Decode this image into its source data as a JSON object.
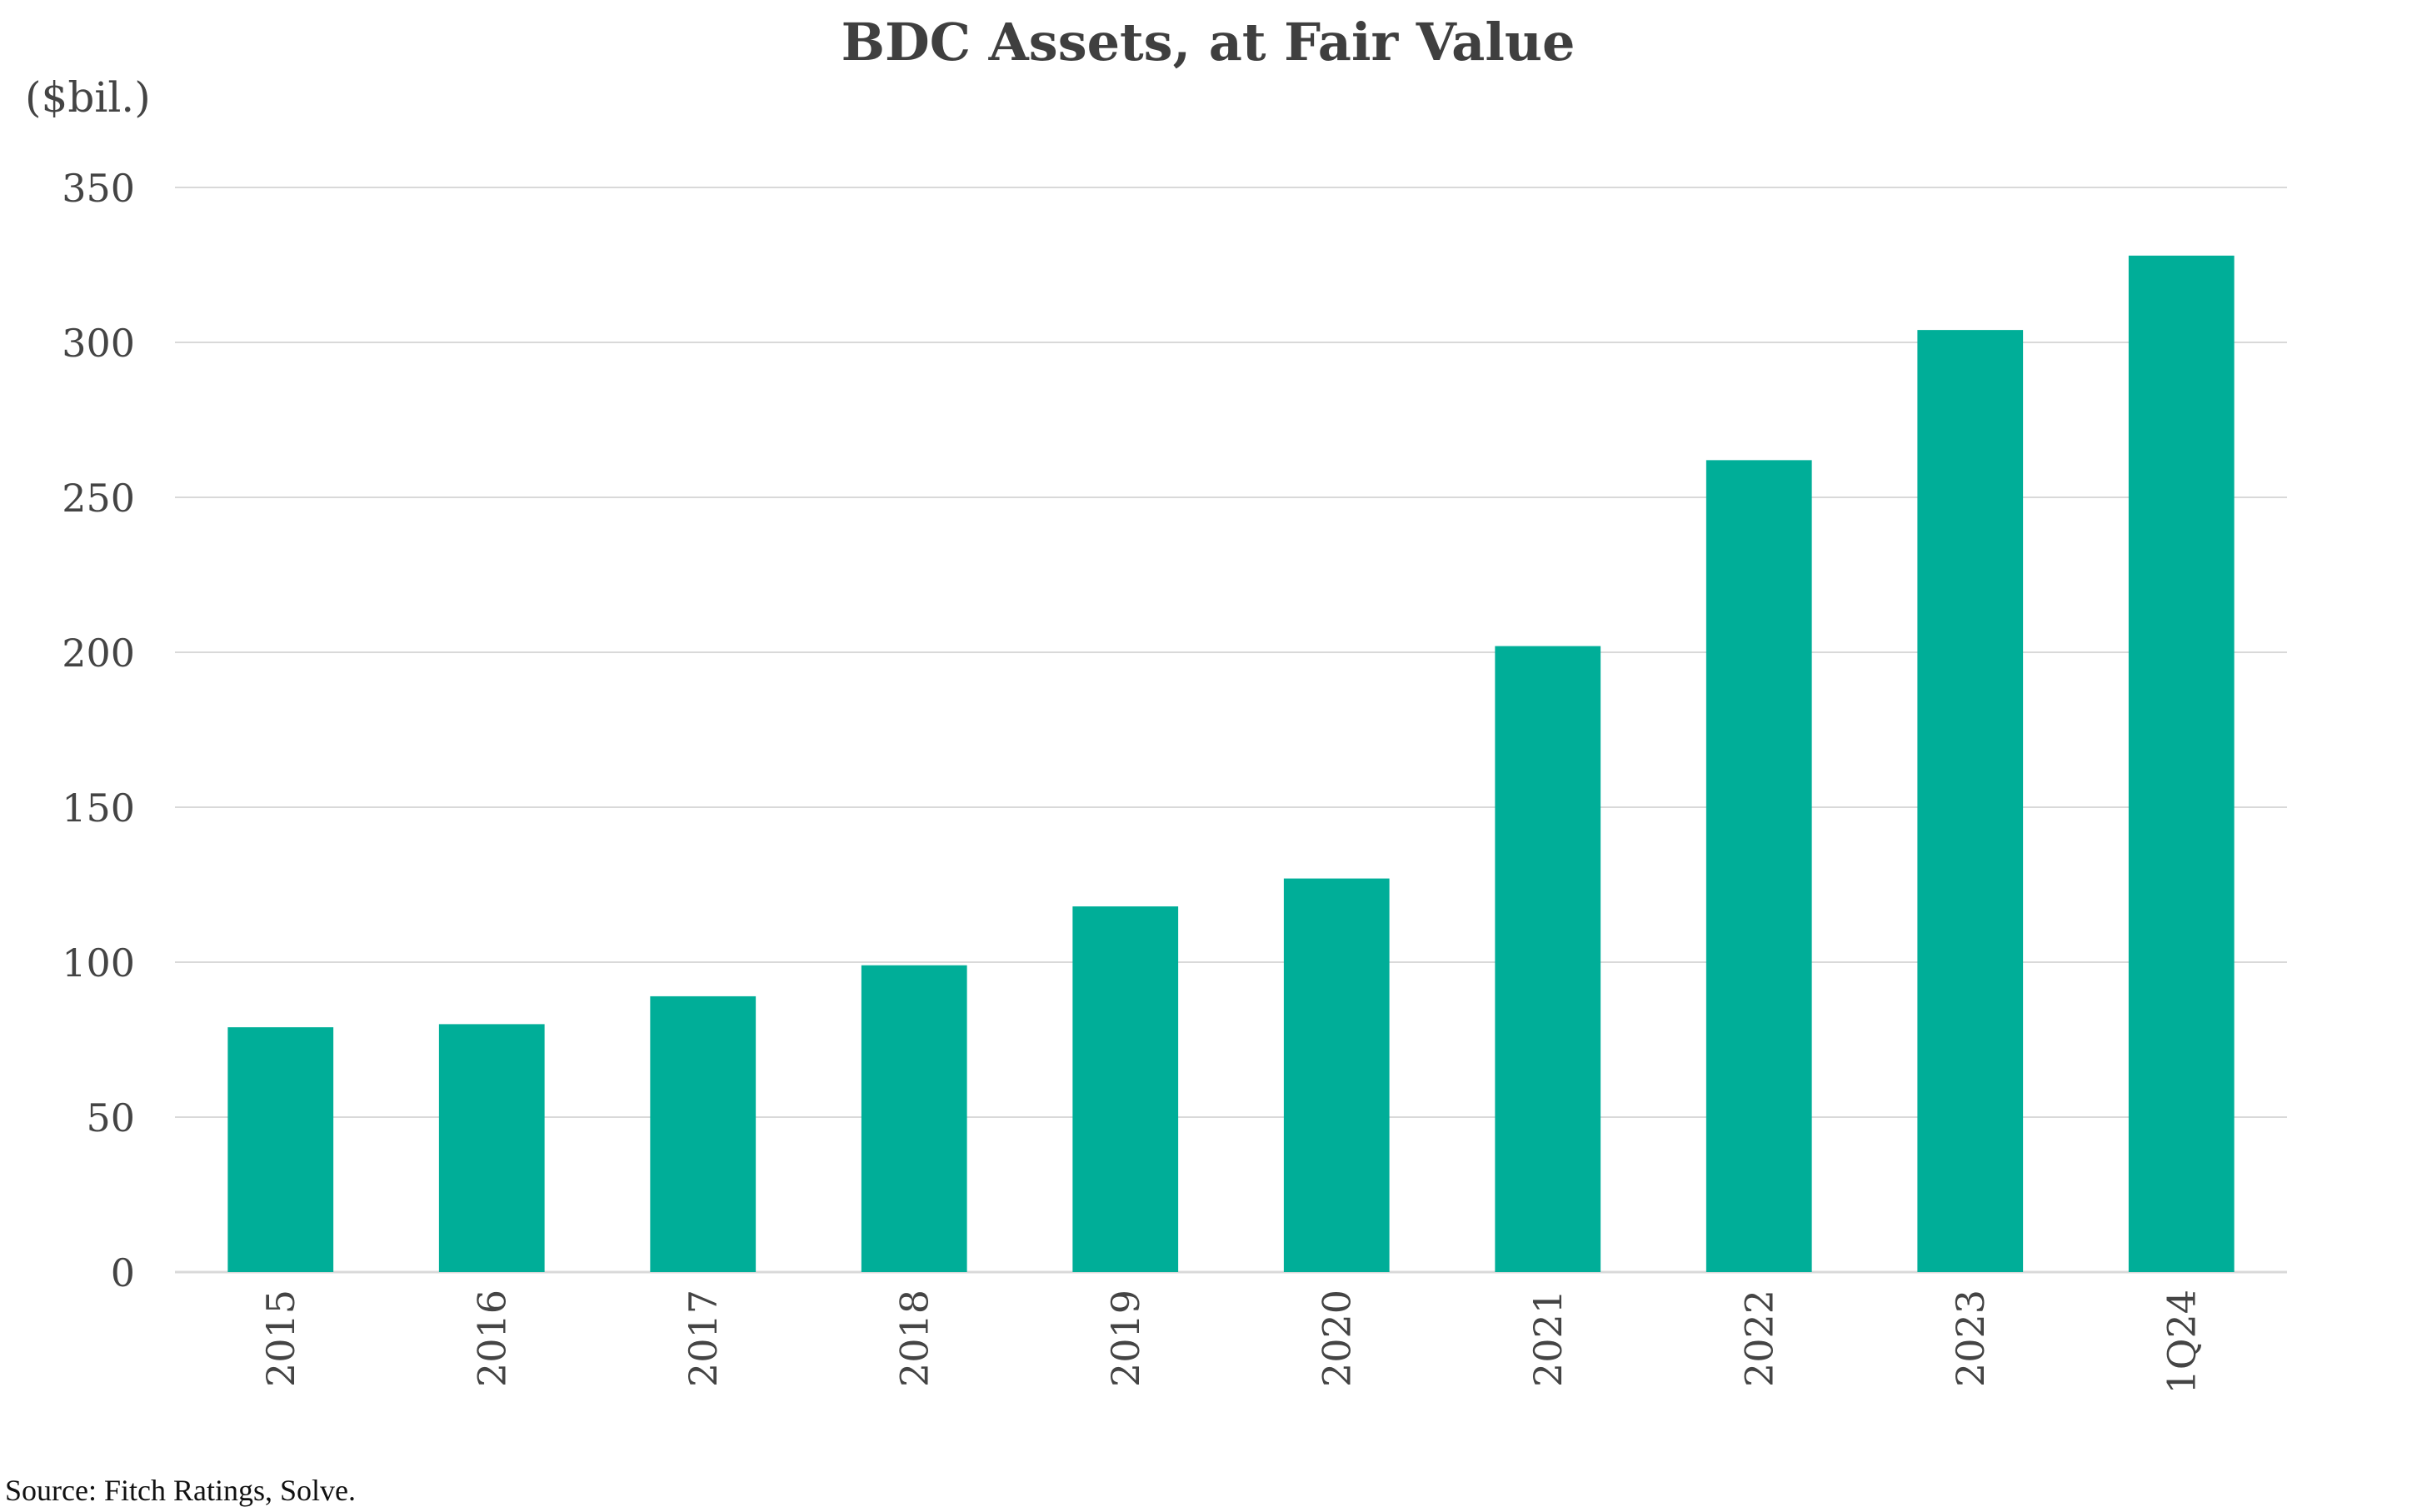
{
  "chart_data": {
    "type": "bar",
    "title": "BDC Assets, at Fair Value",
    "ylabel": "($bil.)",
    "xlabel": "",
    "categories": [
      "2015",
      "2016",
      "2017",
      "2018",
      "2019",
      "2020",
      "2021",
      "2022",
      "2023",
      "1Q24"
    ],
    "values": [
      79,
      80,
      89,
      99,
      118,
      127,
      202,
      262,
      304,
      328
    ],
    "ylim": [
      0,
      350
    ],
    "yticks": [
      0,
      50,
      100,
      150,
      200,
      250,
      300,
      350
    ],
    "grid": true,
    "legend": "none",
    "colors": {
      "bar": "#00ae98",
      "grid": "#d9d9d9",
      "text": "#444444"
    }
  },
  "source": "Source: Fitch Ratings, Solve."
}
